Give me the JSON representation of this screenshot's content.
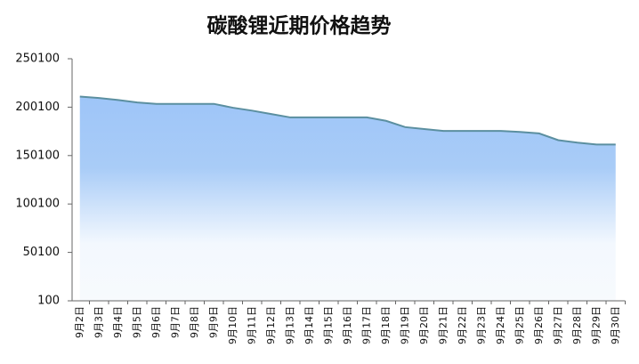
{
  "chart_data": {
    "type": "area",
    "title": "碳酸锂近期价格趋势",
    "categories": [
      "9月2日",
      "9月3日",
      "9月4日",
      "9月5日",
      "9月6日",
      "9月7日",
      "9月8日",
      "9月9日",
      "9月10日",
      "9月11日",
      "9月12日",
      "9月13日",
      "9月14日",
      "9月15日",
      "9月16日",
      "9月17日",
      "9月18日",
      "9月19日",
      "9月20日",
      "9月21日",
      "9月22日",
      "9月23日",
      "9月24日",
      "9月25日",
      "9月26日",
      "9月27日",
      "9月28日",
      "9月29日",
      "9月30日"
    ],
    "values": [
      211000,
      209500,
      207500,
      205000,
      203500,
      203500,
      203500,
      203500,
      199500,
      196500,
      193000,
      189500,
      189500,
      189500,
      189500,
      189500,
      186000,
      179500,
      177500,
      175500,
      175500,
      175500,
      175500,
      174500,
      173000,
      166000,
      163500,
      161500,
      161500
    ],
    "color": "#5b8fa0",
    "fill_top": "#9ec5f8",
    "ylim": [
      100,
      250100
    ],
    "yticks": [
      100,
      50100,
      100100,
      150100,
      200100,
      250100
    ]
  }
}
